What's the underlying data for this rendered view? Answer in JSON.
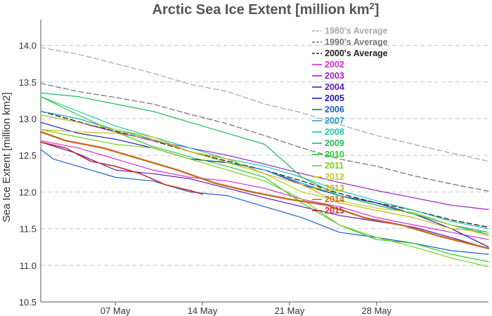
{
  "chart_data": {
    "type": "line",
    "title": "Arctic Sea Ice Extent [million km",
    "title_superscript": "2",
    "title_suffix": "]",
    "xlabel": "",
    "ylabel": "Sea Ice Extent [million km2]",
    "x_start": "2015-05-01",
    "x_end": "2015-06-06",
    "x_ticks": [
      {
        "x": "2015-05-07",
        "label": "07 May"
      },
      {
        "x": "2015-05-14",
        "label": "14 May"
      },
      {
        "x": "2015-05-21",
        "label": "21 May"
      },
      {
        "x": "2015-05-28",
        "label": "28 May"
      }
    ],
    "ylim": [
      10.5,
      14.35
    ],
    "y_ticks": [
      "10.5",
      "11.0",
      "11.5",
      "12.0",
      "12.5",
      "13.0",
      "13.5",
      "14.0"
    ],
    "grid": true,
    "legend_placement": "top-right",
    "series": [
      {
        "name": "1980's Average",
        "color": "#aaaaaa",
        "dash": true,
        "points": [
          [
            "2015-05-01",
            13.97
          ],
          [
            "2015-05-04",
            13.88
          ],
          [
            "2015-05-07",
            13.75
          ],
          [
            "2015-05-10",
            13.62
          ],
          [
            "2015-05-13",
            13.47
          ],
          [
            "2015-05-16",
            13.37
          ],
          [
            "2015-05-19",
            13.2
          ],
          [
            "2015-05-22",
            13.08
          ],
          [
            "2015-05-25",
            12.92
          ],
          [
            "2015-05-28",
            12.77
          ],
          [
            "2015-05-31",
            12.65
          ],
          [
            "2015-06-03",
            12.53
          ],
          [
            "2015-06-06",
            12.42
          ]
        ]
      },
      {
        "name": "1990's Average",
        "color": "#777777",
        "dash": true,
        "points": [
          [
            "2015-05-01",
            13.48
          ],
          [
            "2015-05-04",
            13.37
          ],
          [
            "2015-05-07",
            13.29
          ],
          [
            "2015-05-10",
            13.2
          ],
          [
            "2015-05-13",
            13.06
          ],
          [
            "2015-05-16",
            12.93
          ],
          [
            "2015-05-19",
            12.77
          ],
          [
            "2015-05-22",
            12.6
          ],
          [
            "2015-05-25",
            12.45
          ],
          [
            "2015-05-28",
            12.35
          ],
          [
            "2015-05-31",
            12.22
          ],
          [
            "2015-06-03",
            12.11
          ],
          [
            "2015-06-06",
            12.01
          ]
        ]
      },
      {
        "name": "2000's Average",
        "color": "#222222",
        "dash": true,
        "points": [
          [
            "2015-05-01",
            13.1
          ],
          [
            "2015-05-04",
            12.96
          ],
          [
            "2015-05-07",
            12.83
          ],
          [
            "2015-05-10",
            12.7
          ],
          [
            "2015-05-13",
            12.55
          ],
          [
            "2015-05-16",
            12.42
          ],
          [
            "2015-05-19",
            12.3
          ],
          [
            "2015-05-22",
            12.15
          ],
          [
            "2015-05-25",
            11.98
          ],
          [
            "2015-05-28",
            11.85
          ],
          [
            "2015-05-31",
            11.75
          ],
          [
            "2015-06-03",
            11.62
          ],
          [
            "2015-06-06",
            11.52
          ]
        ]
      },
      {
        "name": "2002",
        "color": "#d62ad6",
        "points": [
          [
            "2015-05-01",
            12.7
          ],
          [
            "2015-05-04",
            12.6
          ],
          [
            "2015-05-07",
            12.45
          ],
          [
            "2015-05-10",
            12.3
          ],
          [
            "2015-05-13",
            12.2
          ],
          [
            "2015-05-16",
            12.15
          ],
          [
            "2015-05-19",
            12.05
          ],
          [
            "2015-05-22",
            11.9
          ],
          [
            "2015-05-25",
            11.8
          ],
          [
            "2015-05-28",
            11.65
          ],
          [
            "2015-05-31",
            11.55
          ],
          [
            "2015-06-03",
            11.45
          ],
          [
            "2015-06-06",
            11.35
          ]
        ]
      },
      {
        "name": "2003",
        "color": "#9a1fc4",
        "points": [
          [
            "2015-05-01",
            13.05
          ],
          [
            "2015-05-04",
            12.95
          ],
          [
            "2015-05-07",
            12.82
          ],
          [
            "2015-05-10",
            12.7
          ],
          [
            "2015-05-13",
            12.6
          ],
          [
            "2015-05-16",
            12.5
          ],
          [
            "2015-05-19",
            12.38
          ],
          [
            "2015-05-22",
            12.25
          ],
          [
            "2015-05-25",
            12.13
          ],
          [
            "2015-05-28",
            12.02
          ],
          [
            "2015-05-31",
            11.92
          ],
          [
            "2015-06-03",
            11.82
          ],
          [
            "2015-06-06",
            11.76
          ]
        ]
      },
      {
        "name": "2004",
        "color": "#5a1ab3",
        "points": [
          [
            "2015-05-01",
            12.68
          ],
          [
            "2015-05-04",
            12.52
          ],
          [
            "2015-05-07",
            12.3
          ],
          [
            "2015-05-10",
            12.25
          ],
          [
            "2015-05-13",
            12.18
          ],
          [
            "2015-05-16",
            12.05
          ],
          [
            "2015-05-19",
            11.92
          ],
          [
            "2015-05-22",
            11.8
          ],
          [
            "2015-05-25",
            11.68
          ],
          [
            "2015-05-28",
            11.6
          ],
          [
            "2015-05-31",
            11.52
          ],
          [
            "2015-06-03",
            11.38
          ],
          [
            "2015-06-06",
            11.23
          ]
        ]
      },
      {
        "name": "2005",
        "color": "#1a1aa8",
        "points": [
          [
            "2015-05-01",
            12.95
          ],
          [
            "2015-05-04",
            12.8
          ],
          [
            "2015-05-07",
            12.72
          ],
          [
            "2015-05-10",
            12.6
          ],
          [
            "2015-05-13",
            12.45
          ],
          [
            "2015-05-16",
            12.4
          ],
          [
            "2015-05-19",
            12.3
          ],
          [
            "2015-05-22",
            12.1
          ],
          [
            "2015-05-25",
            11.95
          ],
          [
            "2015-05-28",
            11.85
          ],
          [
            "2015-05-31",
            11.7
          ],
          [
            "2015-06-03",
            11.5
          ],
          [
            "2015-06-06",
            11.25
          ]
        ]
      },
      {
        "name": "2006",
        "color": "#1b5fc9",
        "points": [
          [
            "2015-05-01",
            12.58
          ],
          [
            "2015-05-02",
            12.45
          ],
          [
            "2015-05-04",
            12.35
          ],
          [
            "2015-05-07",
            12.2
          ],
          [
            "2015-05-10",
            12.15
          ],
          [
            "2015-05-13",
            12.0
          ],
          [
            "2015-05-16",
            11.95
          ],
          [
            "2015-05-19",
            11.8
          ],
          [
            "2015-05-22",
            11.65
          ],
          [
            "2015-05-25",
            11.45
          ],
          [
            "2015-05-28",
            11.38
          ],
          [
            "2015-05-31",
            11.3
          ],
          [
            "2015-06-03",
            11.2
          ],
          [
            "2015-06-06",
            11.15
          ]
        ]
      },
      {
        "name": "2007",
        "color": "#1f9fd1",
        "points": [
          [
            "2015-05-01",
            13.1
          ],
          [
            "2015-05-04",
            13.0
          ],
          [
            "2015-05-07",
            12.85
          ],
          [
            "2015-05-10",
            12.72
          ],
          [
            "2015-05-13",
            12.55
          ],
          [
            "2015-05-16",
            12.4
          ],
          [
            "2015-05-19",
            12.3
          ],
          [
            "2015-05-22",
            12.12
          ],
          [
            "2015-05-25",
            11.95
          ],
          [
            "2015-05-28",
            11.82
          ],
          [
            "2015-05-31",
            11.7
          ],
          [
            "2015-06-03",
            11.55
          ],
          [
            "2015-06-06",
            11.45
          ]
        ]
      },
      {
        "name": "2008",
        "color": "#22c4a8",
        "points": [
          [
            "2015-05-01",
            13.3
          ],
          [
            "2015-05-04",
            13.1
          ],
          [
            "2015-05-07",
            12.9
          ],
          [
            "2015-05-10",
            12.75
          ],
          [
            "2015-05-13",
            12.6
          ],
          [
            "2015-05-16",
            12.45
          ],
          [
            "2015-05-19",
            12.35
          ],
          [
            "2015-05-22",
            12.2
          ],
          [
            "2015-05-25",
            12.02
          ],
          [
            "2015-05-28",
            11.88
          ],
          [
            "2015-05-31",
            11.75
          ],
          [
            "2015-06-03",
            11.6
          ],
          [
            "2015-06-06",
            11.5
          ]
        ]
      },
      {
        "name": "2009",
        "color": "#1fba5a",
        "points": [
          [
            "2015-05-01",
            13.35
          ],
          [
            "2015-05-04",
            13.3
          ],
          [
            "2015-05-07",
            13.2
          ],
          [
            "2015-05-10",
            13.1
          ],
          [
            "2015-05-13",
            12.95
          ],
          [
            "2015-05-16",
            12.8
          ],
          [
            "2015-05-19",
            12.65
          ],
          [
            "2015-05-22",
            12.2
          ],
          [
            "2015-05-25",
            11.95
          ],
          [
            "2015-05-28",
            11.82
          ],
          [
            "2015-05-31",
            11.7
          ],
          [
            "2015-06-03",
            11.55
          ],
          [
            "2015-06-06",
            11.42
          ]
        ]
      },
      {
        "name": "2010",
        "color": "#2dcc2d",
        "points": [
          [
            "2015-05-01",
            13.3
          ],
          [
            "2015-05-04",
            13.05
          ],
          [
            "2015-05-07",
            12.82
          ],
          [
            "2015-05-10",
            12.62
          ],
          [
            "2015-05-13",
            12.48
          ],
          [
            "2015-05-16",
            12.35
          ],
          [
            "2015-05-19",
            12.2
          ],
          [
            "2015-05-22",
            11.85
          ],
          [
            "2015-05-25",
            11.55
          ],
          [
            "2015-05-28",
            11.35
          ],
          [
            "2015-05-31",
            11.3
          ],
          [
            "2015-06-03",
            11.15
          ],
          [
            "2015-06-06",
            11.05
          ]
        ]
      },
      {
        "name": "2011",
        "color": "#7acc1f",
        "points": [
          [
            "2015-05-01",
            12.85
          ],
          [
            "2015-05-04",
            12.75
          ],
          [
            "2015-05-07",
            12.65
          ],
          [
            "2015-05-10",
            12.6
          ],
          [
            "2015-05-13",
            12.45
          ],
          [
            "2015-05-16",
            12.3
          ],
          [
            "2015-05-19",
            12.15
          ],
          [
            "2015-05-22",
            11.9
          ],
          [
            "2015-05-25",
            11.55
          ],
          [
            "2015-05-28",
            11.38
          ],
          [
            "2015-05-31",
            11.25
          ],
          [
            "2015-06-03",
            11.1
          ],
          [
            "2015-06-06",
            10.98
          ]
        ]
      },
      {
        "name": "2012",
        "color": "#b8cc1f",
        "points": [
          [
            "2015-05-01",
            13.05
          ],
          [
            "2015-05-04",
            12.95
          ],
          [
            "2015-05-07",
            12.85
          ],
          [
            "2015-05-10",
            12.75
          ],
          [
            "2015-05-13",
            12.55
          ],
          [
            "2015-05-16",
            12.4
          ],
          [
            "2015-05-19",
            12.25
          ],
          [
            "2015-05-22",
            12.0
          ],
          [
            "2015-05-25",
            11.88
          ],
          [
            "2015-05-28",
            11.78
          ],
          [
            "2015-05-31",
            11.72
          ],
          [
            "2015-06-03",
            11.55
          ],
          [
            "2015-06-06",
            11.4
          ]
        ]
      },
      {
        "name": "2013",
        "color": "#c9b020",
        "points": [
          [
            "2015-05-01",
            12.85
          ],
          [
            "2015-05-04",
            12.82
          ],
          [
            "2015-05-07",
            12.8
          ],
          [
            "2015-05-10",
            12.72
          ],
          [
            "2015-05-13",
            12.55
          ],
          [
            "2015-05-16",
            12.45
          ],
          [
            "2015-05-19",
            12.25
          ],
          [
            "2015-05-22",
            12.1
          ],
          [
            "2015-05-25",
            11.85
          ],
          [
            "2015-05-28",
            11.75
          ],
          [
            "2015-05-31",
            11.65
          ],
          [
            "2015-06-03",
            11.5
          ],
          [
            "2015-06-06",
            11.45
          ]
        ]
      },
      {
        "name": "2014",
        "color": "#c66a1e",
        "points": [
          [
            "2015-05-01",
            12.82
          ],
          [
            "2015-05-03",
            12.7
          ],
          [
            "2015-05-06",
            12.6
          ],
          [
            "2015-05-09",
            12.45
          ],
          [
            "2015-05-12",
            12.3
          ],
          [
            "2015-05-15",
            12.12
          ],
          [
            "2015-05-18",
            12.0
          ],
          [
            "2015-05-21",
            11.9
          ],
          [
            "2015-05-24",
            11.82
          ],
          [
            "2015-05-27",
            11.65
          ],
          [
            "2015-05-30",
            11.55
          ],
          [
            "2015-06-02",
            11.4
          ],
          [
            "2015-06-06",
            11.23
          ]
        ]
      },
      {
        "name": "2015",
        "color": "#c42b2b",
        "points": [
          [
            "2015-05-01",
            12.68
          ],
          [
            "2015-05-03",
            12.6
          ],
          [
            "2015-05-05",
            12.42
          ],
          [
            "2015-05-07",
            12.35
          ],
          [
            "2015-05-09",
            12.25
          ],
          [
            "2015-05-11",
            12.1
          ],
          [
            "2015-05-13",
            12.02
          ],
          [
            "2015-05-14",
            11.97
          ]
        ]
      }
    ]
  }
}
